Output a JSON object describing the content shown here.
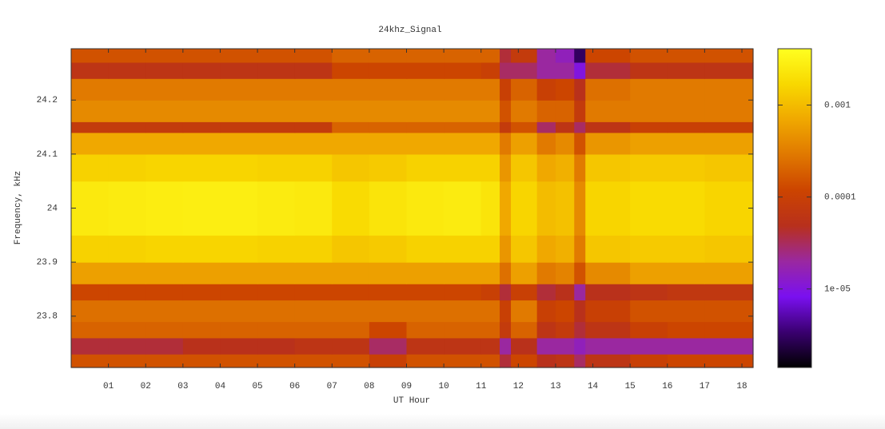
{
  "chart_data": {
    "type": "heatmap",
    "title": "24khz_Signal",
    "xlabel": "UT Hour",
    "ylabel": "Frequency, kHz",
    "xbins": [
      0,
      1,
      2,
      3,
      4,
      5,
      6,
      7,
      8,
      9,
      10,
      11,
      11.5,
      11.8,
      12.5,
      13,
      13.5,
      13.8,
      15,
      16,
      17,
      18.3
    ],
    "ybins": [
      23.705,
      23.73,
      23.76,
      23.79,
      23.83,
      23.86,
      23.9,
      23.95,
      24.05,
      24.1,
      24.14,
      24.16,
      24.2,
      24.24,
      24.27,
      24.295
    ],
    "values": [
      [
        0.00015,
        0.00015,
        0.00015,
        0.00015,
        0.00015,
        0.00015,
        0.00015,
        0.00015,
        0.0001,
        0.00015,
        0.00015,
        0.00015,
        4e-05,
        0.00012,
        5e-05,
        6e-05,
        3e-05,
        6e-05,
        0.0001,
        0.00012,
        0.00012
      ],
      [
        4e-05,
        4e-05,
        4e-05,
        5e-05,
        5e-05,
        5e-05,
        6e-05,
        6e-05,
        3e-05,
        6e-05,
        6e-05,
        6e-05,
        2e-05,
        5e-05,
        2e-05,
        2e-05,
        1.5e-05,
        2e-05,
        2e-05,
        2e-05,
        2e-05
      ],
      [
        0.0002,
        0.0002,
        0.0002,
        0.0002,
        0.0002,
        0.0002,
        0.0002,
        0.0002,
        0.00012,
        0.0002,
        0.0002,
        0.0002,
        8e-05,
        0.0002,
        6e-05,
        8e-05,
        4e-05,
        6e-05,
        0.0001,
        0.00012,
        0.00012
      ],
      [
        0.00025,
        0.00025,
        0.00025,
        0.00025,
        0.00025,
        0.00025,
        0.00025,
        0.00025,
        0.00025,
        0.00025,
        0.00025,
        0.00025,
        0.0001,
        0.0003,
        0.0001,
        0.00012,
        5e-05,
        0.0001,
        0.00015,
        0.00015,
        0.00015
      ],
      [
        0.00012,
        0.00012,
        0.00012,
        0.00012,
        0.00012,
        0.00012,
        0.00012,
        0.00012,
        0.00012,
        0.00012,
        0.00012,
        0.0001,
        4e-05,
        0.0001,
        4e-05,
        5e-05,
        2e-05,
        5e-05,
        6e-05,
        7e-05,
        7e-05
      ],
      [
        0.0006,
        0.0006,
        0.0006,
        0.0006,
        0.0006,
        0.0006,
        0.0006,
        0.0006,
        0.0006,
        0.0006,
        0.0006,
        0.0006,
        0.00025,
        0.0006,
        0.0003,
        0.00035,
        0.00015,
        0.0004,
        0.0006,
        0.0006,
        0.0006
      ],
      [
        0.0015,
        0.0015,
        0.0016,
        0.0016,
        0.0016,
        0.0015,
        0.0015,
        0.0012,
        0.0013,
        0.0015,
        0.0015,
        0.0015,
        0.0005,
        0.0012,
        0.0007,
        0.0008,
        0.0003,
        0.0012,
        0.0013,
        0.0013,
        0.0012
      ],
      [
        0.0025,
        0.0026,
        0.0027,
        0.0028,
        0.0028,
        0.0026,
        0.0025,
        0.0018,
        0.0022,
        0.0025,
        0.0026,
        0.0022,
        0.0007,
        0.0016,
        0.001,
        0.0011,
        0.0004,
        0.0016,
        0.0018,
        0.0018,
        0.0016
      ],
      [
        0.0015,
        0.0015,
        0.0016,
        0.0016,
        0.0016,
        0.0015,
        0.0015,
        0.0012,
        0.0013,
        0.0015,
        0.0015,
        0.0015,
        0.0005,
        0.0012,
        0.0007,
        0.0008,
        0.0003,
        0.0012,
        0.0013,
        0.0013,
        0.0012
      ],
      [
        0.0007,
        0.0007,
        0.0007,
        0.0007,
        0.0007,
        0.0007,
        0.0007,
        0.0007,
        0.0007,
        0.0007,
        0.0007,
        0.0007,
        0.0003,
        0.0006,
        0.0003,
        0.0004,
        0.00015,
        0.0005,
        0.0006,
        0.0006,
        0.0006
      ],
      [
        8e-05,
        8e-05,
        8e-05,
        8e-05,
        8e-05,
        8e-05,
        8e-05,
        0.0002,
        0.0002,
        0.0002,
        0.0002,
        0.0002,
        8e-05,
        0.00015,
        3e-05,
        6e-05,
        3e-05,
        6e-05,
        0.0001,
        0.0001,
        0.0001
      ],
      [
        0.0004,
        0.0004,
        0.0004,
        0.0004,
        0.0004,
        0.0004,
        0.0004,
        0.0004,
        0.0004,
        0.0004,
        0.0004,
        0.0004,
        0.00015,
        0.0003,
        0.0002,
        0.0002,
        8e-05,
        0.0003,
        0.0003,
        0.0003,
        0.0003
      ],
      [
        0.0003,
        0.0003,
        0.0003,
        0.0003,
        0.0003,
        0.0003,
        0.0003,
        0.0003,
        0.0003,
        0.0003,
        0.0003,
        0.0003,
        0.0001,
        0.0002,
        0.0001,
        0.00012,
        5e-05,
        0.00025,
        0.0003,
        0.0003,
        0.0003
      ],
      [
        6e-05,
        6e-05,
        6e-05,
        6e-05,
        6e-05,
        6e-05,
        6e-05,
        0.00012,
        0.00012,
        0.00012,
        0.00012,
        0.0001,
        3e-05,
        3e-05,
        2e-05,
        2e-05,
        1e-05,
        4e-05,
        6e-05,
        6e-05,
        6e-05
      ],
      [
        0.00015,
        0.00015,
        0.00015,
        0.00015,
        0.00015,
        0.00015,
        0.00015,
        0.0002,
        0.0002,
        0.0002,
        0.0002,
        0.0002,
        4e-05,
        8e-05,
        2e-05,
        1.5e-05,
        3e-06,
        0.00012,
        0.00015,
        0.00015,
        0.00015
      ]
    ],
    "xlim": [
      0,
      18.3
    ],
    "ylim": [
      23.705,
      24.295
    ],
    "xticks": [
      {
        "value": 1,
        "label": "01"
      },
      {
        "value": 2,
        "label": "02"
      },
      {
        "value": 3,
        "label": "03"
      },
      {
        "value": 4,
        "label": "04"
      },
      {
        "value": 5,
        "label": "05"
      },
      {
        "value": 6,
        "label": "06"
      },
      {
        "value": 7,
        "label": "07"
      },
      {
        "value": 8,
        "label": "08"
      },
      {
        "value": 9,
        "label": "09"
      },
      10,
      11,
      12,
      13,
      14,
      15,
      16,
      17,
      18
    ],
    "yticks": [
      23.8,
      23.9,
      24,
      24.1,
      24.2
    ],
    "clog": true,
    "clim": [
      1.4e-06,
      0.0041
    ],
    "cticks": [
      {
        "value": 1e-05,
        "label": "1e-05"
      },
      0.0001,
      0.001
    ],
    "colormap": [
      "#000000",
      "#3a0070",
      "#7a10f0",
      "#9a28a0",
      "#b8301c",
      "#cc4400",
      "#e07800",
      "#f0a800",
      "#f8d800",
      "#ffff20"
    ]
  }
}
